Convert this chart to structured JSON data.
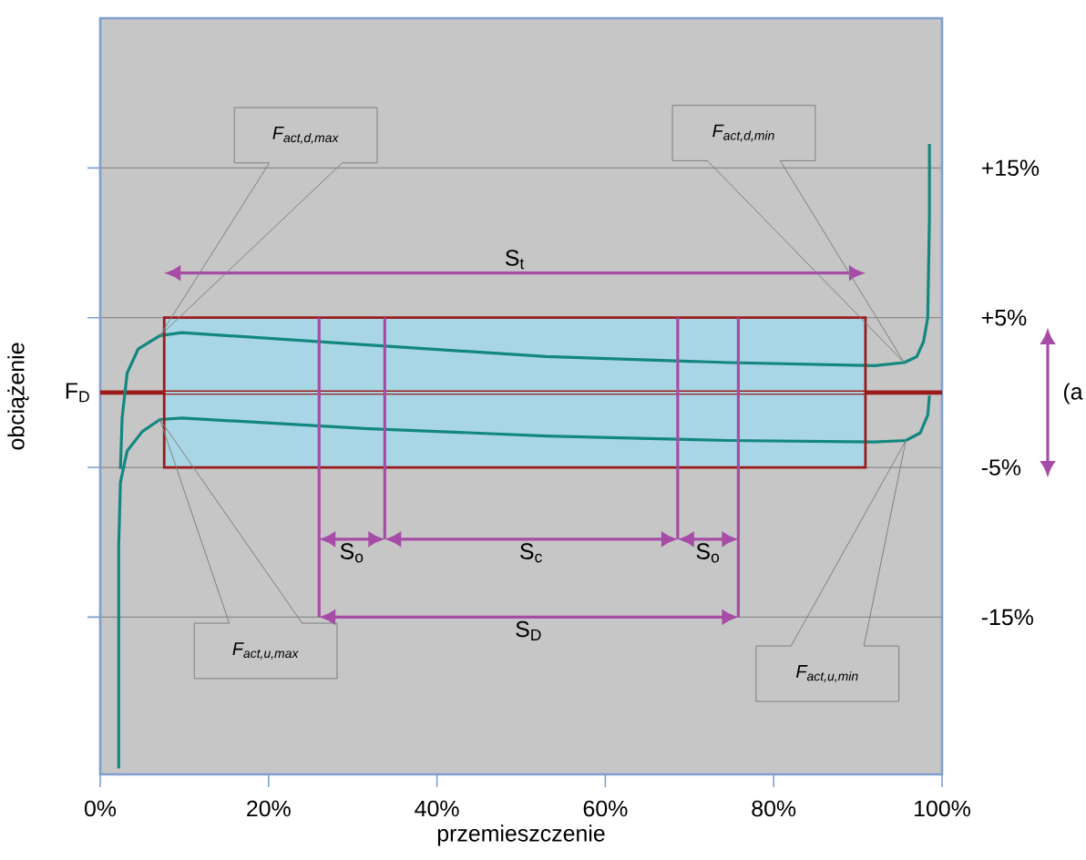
{
  "chart_data": {
    "type": "line",
    "xlabel": "przemieszczenie",
    "ylabel": "obciążenie",
    "xlim": [
      0,
      100
    ],
    "ylim": [
      -25.5,
      25
    ],
    "xticks": [
      {
        "value": 0,
        "label": "0%"
      },
      {
        "value": 20,
        "label": "20%"
      },
      {
        "value": 40,
        "label": "40%"
      },
      {
        "value": 60,
        "label": "60%"
      },
      {
        "value": 80,
        "label": "80%"
      },
      {
        "value": 100,
        "label": "100%"
      }
    ],
    "yticks": [
      {
        "value": 15,
        "label": "+15%"
      },
      {
        "value": 5,
        "label": "+5%"
      },
      {
        "value": -5,
        "label": "-5%"
      },
      {
        "value": -15,
        "label": "-15%"
      }
    ],
    "grid": "y",
    "marker": "none",
    "series": [
      {
        "color": "#12877f",
        "x": [
          2.4,
          2.6,
          3.2,
          4.5,
          7.1,
          9.7,
          31.4,
          53.0,
          74.7,
          92.0,
          95.5,
          97.0,
          97.8,
          98.3,
          98.5,
          98.5
        ],
        "values": [
          -5.1,
          -1.7,
          1.3,
          2.9,
          3.8,
          4.0,
          3.2,
          2.4,
          2.0,
          1.8,
          2.0,
          2.4,
          3.4,
          5.0,
          11.7,
          16.6
        ]
      },
      {
        "color": "#12877f",
        "x": [
          2.2,
          2.2,
          2.4,
          3.2,
          5.0,
          7.1,
          9.7,
          31.4,
          53.0,
          74.7,
          92.0,
          95.7,
          97.4,
          98.3,
          98.5
        ],
        "values": [
          -25.1,
          -10.2,
          -6.0,
          -3.9,
          -2.6,
          -1.8,
          -1.7,
          -2.4,
          -2.9,
          -3.2,
          -3.3,
          -3.2,
          -2.7,
          -1.5,
          -0.2
        ]
      },
      {
        "color": "#a9d6e5",
        "x": [
          7.6,
          90.9
        ],
        "values": [
          0,
          0
        ],
        "lower": [
          -5,
          -5
        ],
        "upper": [
          5,
          5
        ]
      }
    ],
    "ref_lines": [
      {
        "axis": "y",
        "value": 0,
        "color": "#9b1b1b",
        "label": "F$_{D}$"
      },
      {
        "axis": "x",
        "value": 26.0,
        "color": "#a64ca6"
      },
      {
        "axis": "x",
        "value": 33.8,
        "color": "#a64ca6"
      },
      {
        "axis": "x",
        "value": 68.6,
        "color": "#a64ca6"
      },
      {
        "axis": "x",
        "value": 75.8,
        "color": "#a64ca6"
      }
    ],
    "annotations": [
      "S$_{t}$",
      "S$_{o}$",
      "S$_{c}$",
      "S$_{o}$",
      "S$_{D}$",
      "F$_{act,d,max}$",
      "F$_{act,d,min}$",
      "F$_{act,u,max}$",
      "F$_{act,u,min}$",
      "(a"
    ]
  }
}
